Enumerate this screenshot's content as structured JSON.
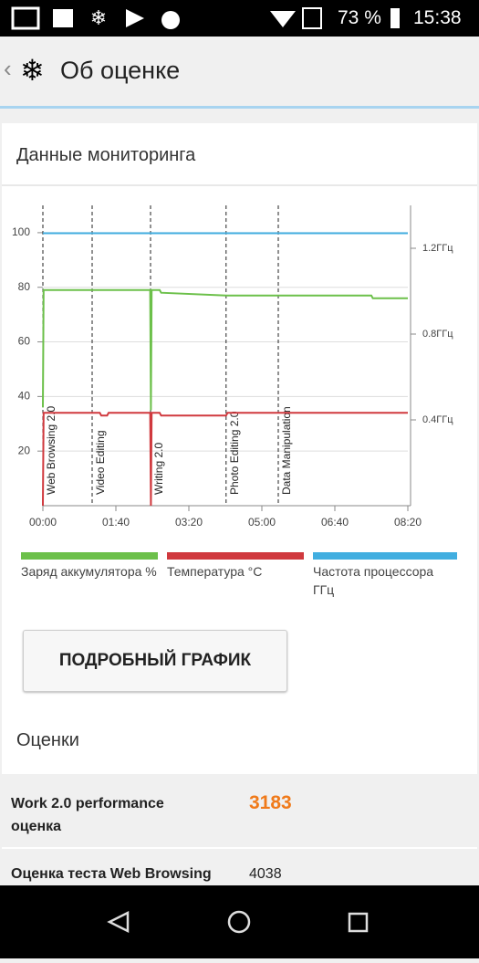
{
  "status_bar": {
    "battery": "73 %",
    "time": "15:38"
  },
  "app_bar": {
    "title": "Об оценке"
  },
  "section_title": "Данные мониторинга",
  "chart_data": {
    "type": "line",
    "xlim": [
      0,
      500
    ],
    "xticks": [
      {
        "value": 0,
        "label": "00:00"
      },
      {
        "value": 100,
        "label": "01:40"
      },
      {
        "value": 200,
        "label": "03:20"
      },
      {
        "value": 300,
        "label": "05:00"
      },
      {
        "value": 400,
        "label": "06:40"
      },
      {
        "value": 500,
        "label": "08:20"
      }
    ],
    "ylim": [
      0,
      110
    ],
    "yticks": [
      20,
      40,
      60,
      80,
      100
    ],
    "y2lim": [
      0,
      1.4
    ],
    "y2ticks": [
      {
        "value": 0.4,
        "label": "0.4ГГц"
      },
      {
        "value": 0.8,
        "label": "0.8ГГц"
      },
      {
        "value": 1.2,
        "label": "1.2ГГц"
      }
    ],
    "grid": true,
    "markers": [
      {
        "x": 0,
        "label": "Web Browsing 2.0"
      },
      {
        "x": 67.5,
        "label": "Video Editing"
      },
      {
        "x": 147.5,
        "label": "Writing 2.0"
      },
      {
        "x": 251,
        "label": "Photo Editing 2.0"
      },
      {
        "x": 322.5,
        "label": "Data Manipulation"
      }
    ],
    "series": [
      {
        "name": "Заряд аккумулятора %",
        "color": "#6cc04a",
        "x": [
          0,
          1,
          147,
          148,
          149,
          160,
          162,
          251,
          450,
          452,
          500
        ],
        "values": [
          36,
          79,
          79,
          35,
          79,
          79,
          78,
          77,
          77,
          76,
          76
        ]
      },
      {
        "name": "Температура °C",
        "color": "#d0393e",
        "x": [
          0,
          1,
          78,
          80,
          88,
          90,
          147,
          148,
          149,
          160,
          162,
          251,
          253,
          500
        ],
        "values": [
          0,
          34,
          34,
          33,
          33,
          34,
          34,
          0,
          34,
          34,
          33,
          33,
          34,
          34
        ]
      },
      {
        "name": "Частота процессора ГГц",
        "color": "#41aee0",
        "axis": "y2",
        "x": [
          0,
          500
        ],
        "values": [
          1.27,
          1.27
        ]
      }
    ]
  },
  "button": "ПОДРОБНЫЙ ГРАФИК",
  "scores_title": "Оценки",
  "scores": [
    {
      "label": "Work 2.0 performance оценка",
      "value": "3183"
    },
    {
      "label": "Оценка теста Web Browsing",
      "value": "4038"
    }
  ]
}
